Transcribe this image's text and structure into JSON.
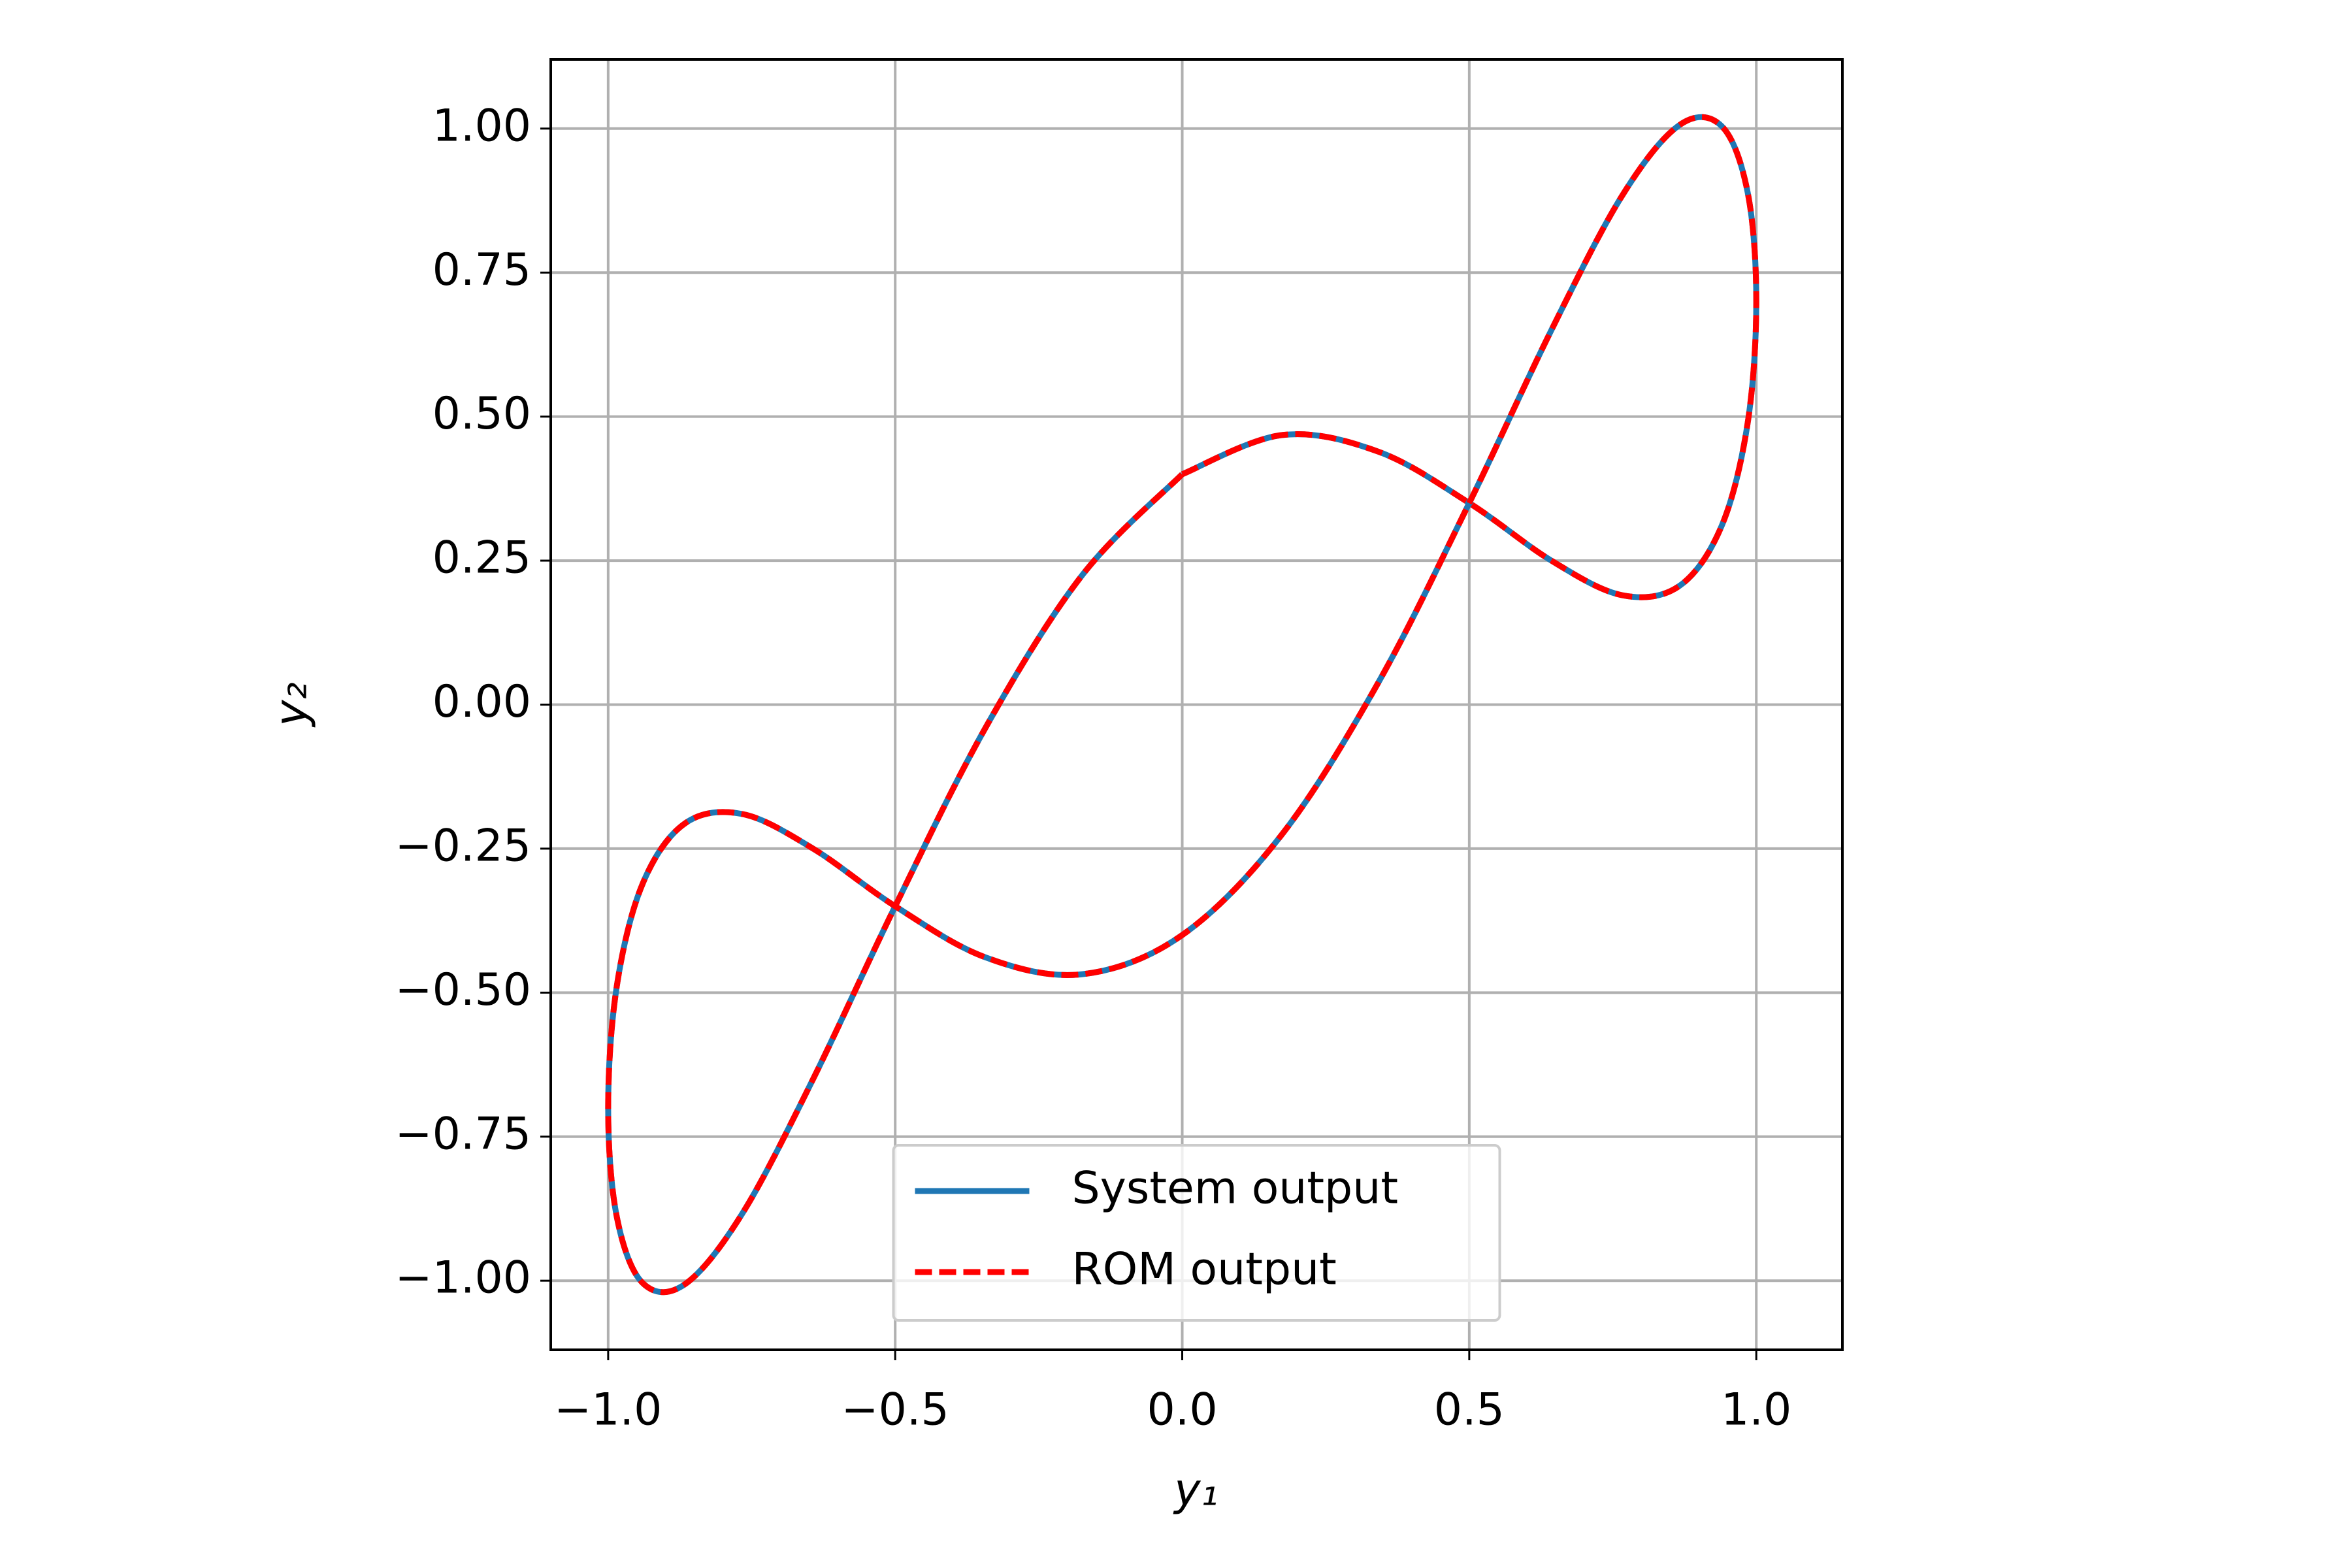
{
  "chart_data": {
    "type": "line",
    "xlabel": "y₁",
    "ylabel": "y₂",
    "x": [
      0,
      0.174,
      0.342,
      0.5,
      0.643,
      0.766,
      0.866,
      0.94,
      0.985,
      1,
      0.985,
      0.94,
      0.866,
      0.766,
      0.643,
      0.5,
      0.342,
      0.174,
      0,
      -0.174,
      -0.342,
      -0.5,
      -0.643,
      -0.766,
      -0.866,
      -0.94,
      -0.985,
      -1,
      -0.985,
      -0.94,
      -0.866,
      -0.766,
      -0.643,
      -0.5,
      -0.342,
      -0.174,
      0
    ],
    "series": [
      {
        "name": "System output",
        "color": "#1f77b4",
        "dashed": false,
        "values": [
          0.4,
          0.468,
          0.439,
          0.35,
          0.25,
          0.19,
          0.206,
          0.311,
          0.489,
          0.7,
          0.889,
          1.004,
          1.006,
          0.883,
          0.65,
          0.35,
          0.039,
          -0.225,
          -0.4,
          -0.468,
          -0.439,
          -0.35,
          -0.25,
          -0.19,
          -0.206,
          -0.311,
          -0.489,
          -0.7,
          -0.889,
          -1.004,
          -1.006,
          -0.883,
          -0.65,
          -0.35,
          -0.039,
          0.225,
          0.4
        ]
      },
      {
        "name": "ROM output",
        "color": "#ff0000",
        "dashed": true,
        "values": [
          0.4,
          0.468,
          0.439,
          0.35,
          0.25,
          0.19,
          0.206,
          0.311,
          0.489,
          0.7,
          0.889,
          1.004,
          1.006,
          0.883,
          0.65,
          0.35,
          0.039,
          -0.225,
          -0.4,
          -0.468,
          -0.439,
          -0.35,
          -0.25,
          -0.19,
          -0.206,
          -0.311,
          -0.489,
          -0.7,
          -0.889,
          -1.004,
          -1.006,
          -0.883,
          -0.65,
          -0.35,
          -0.039,
          0.225,
          0.4
        ]
      }
    ],
    "xlim": [
      -1.1,
      1.15
    ],
    "ylim": [
      -1.12,
      1.12
    ],
    "xticks": [
      {
        "value": -1,
        "label": "−1.0"
      },
      {
        "value": -0.5,
        "label": "−0.5"
      },
      {
        "value": 0,
        "label": "0.0"
      },
      0.5,
      {
        "value": 1,
        "label": "1.0"
      }
    ],
    "yticks": [
      {
        "value": -1,
        "label": "−1.00"
      },
      {
        "value": -0.75,
        "label": "−0.75"
      },
      {
        "value": -0.5,
        "label": "−0.50"
      },
      {
        "value": -0.25,
        "label": "−0.25"
      },
      {
        "value": 0,
        "label": "0.00"
      },
      0.25,
      {
        "value": 0.5,
        "label": "0.50"
      },
      0.75,
      {
        "value": 1,
        "label": "1.00"
      }
    ],
    "grid": true,
    "legend": "lower center"
  }
}
